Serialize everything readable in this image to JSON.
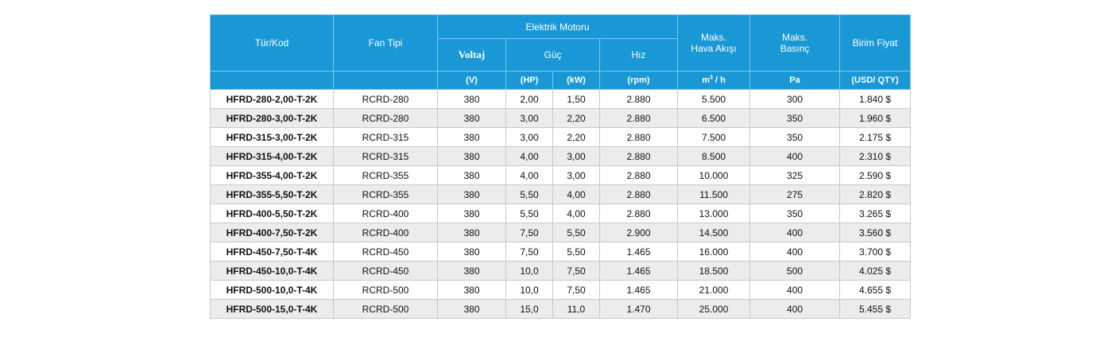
{
  "header": {
    "tur_kod": "Tür/Kod",
    "fan_tipi": "Fan Tipi",
    "elektrik_motoru": "Elektrik Motoru",
    "voltaj": "Voltaj",
    "guc": "Güç",
    "hiz": "Hız",
    "hava_akisi_line1": "Maks.",
    "hava_akisi_line2": "Hava Akışı",
    "basinc_line1": "Maks.",
    "basinc_line2": "Basınç",
    "birim_fiyat": "Birim Fiyat",
    "unit_v": "(V)",
    "unit_hp": "(HP)",
    "unit_kw": "(kW)",
    "unit_rpm": "(rpm)",
    "unit_m3_base": "m",
    "unit_m3_sup": "3",
    "unit_m3_tail": " / h",
    "unit_pa": "Pa",
    "unit_price": "(USD/ QTY)"
  },
  "rows": [
    [
      "HFRD-280-2,00-T-2K",
      "RCRD-280",
      "380",
      "2,00",
      "1,50",
      "2.880",
      "5.500",
      "300",
      "1.840 $"
    ],
    [
      "HFRD-280-3,00-T-2K",
      "RCRD-280",
      "380",
      "3,00",
      "2,20",
      "2.880",
      "6.500",
      "350",
      "1.960 $"
    ],
    [
      "HFRD-315-3,00-T-2K",
      "RCRD-315",
      "380",
      "3,00",
      "2,20",
      "2.880",
      "7.500",
      "350",
      "2.175 $"
    ],
    [
      "HFRD-315-4,00-T-2K",
      "RCRD-315",
      "380",
      "4,00",
      "3,00",
      "2.880",
      "8.500",
      "400",
      "2.310 $"
    ],
    [
      "HFRD-355-4,00-T-2K",
      "RCRD-355",
      "380",
      "4,00",
      "3,00",
      "2.880",
      "10.000",
      "325",
      "2.590 $"
    ],
    [
      "HFRD-355-5,50-T-2K",
      "RCRD-355",
      "380",
      "5,50",
      "4,00",
      "2.880",
      "11.500",
      "275",
      "2.820 $"
    ],
    [
      "HFRD-400-5,50-T-2K",
      "RCRD-400",
      "380",
      "5,50",
      "4,00",
      "2.880",
      "13.000",
      "350",
      "3.265 $"
    ],
    [
      "HFRD-400-7,50-T-2K",
      "RCRD-400",
      "380",
      "7,50",
      "5,50",
      "2.900",
      "14.500",
      "400",
      "3.560 $"
    ],
    [
      "HFRD-450-7,50-T-4K",
      "RCRD-450",
      "380",
      "7,50",
      "5,50",
      "1.465",
      "16.000",
      "400",
      "3.700 $"
    ],
    [
      "HFRD-450-10,0-T-4K",
      "RCRD-450",
      "380",
      "10,0",
      "7,50",
      "1.465",
      "18.500",
      "500",
      "4.025 $"
    ],
    [
      "HFRD-500-10,0-T-4K",
      "RCRD-500",
      "380",
      "10,0",
      "7,50",
      "1.465",
      "21.000",
      "400",
      "4.655 $"
    ],
    [
      "HFRD-500-15,0-T-4K",
      "RCRD-500",
      "380",
      "15,0",
      "11,0",
      "1.470",
      "25.000",
      "400",
      "5.455 $"
    ]
  ]
}
